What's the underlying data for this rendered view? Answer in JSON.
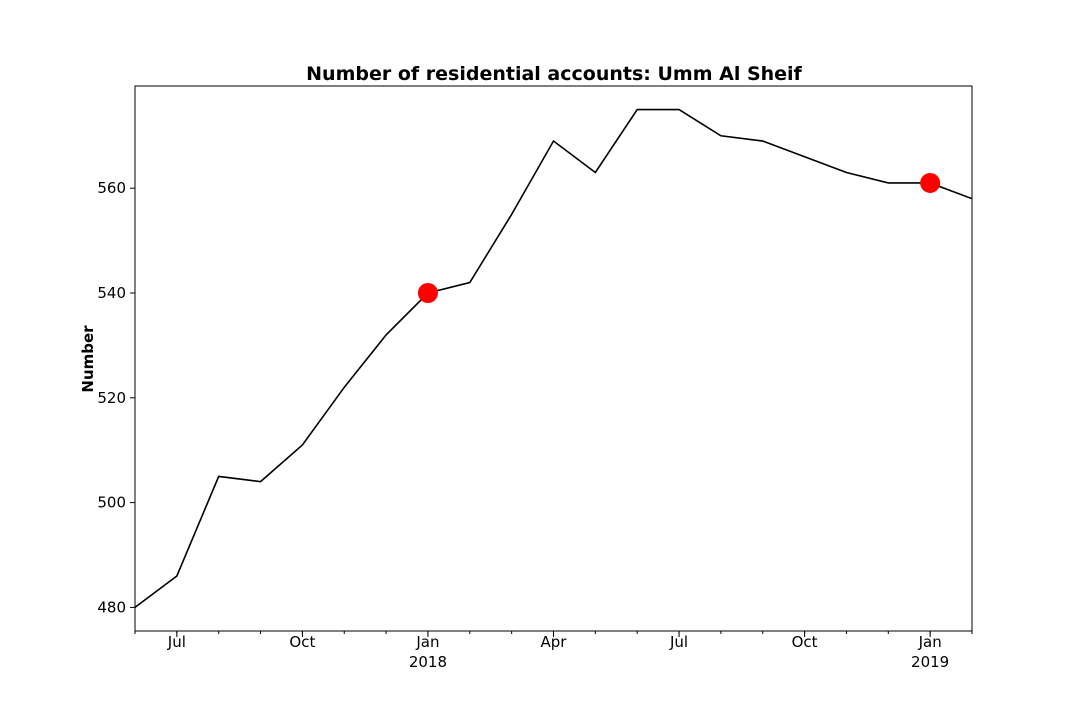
{
  "chart_data": {
    "type": "line",
    "title": "Number of residential accounts: Umm Al Sheif",
    "xlabel": "",
    "ylabel": "Number",
    "x": [
      "2017-06",
      "2017-07",
      "2017-08",
      "2017-09",
      "2017-10",
      "2017-11",
      "2017-12",
      "2018-01",
      "2018-02",
      "2018-03",
      "2018-04",
      "2018-05",
      "2018-06",
      "2018-07",
      "2018-08",
      "2018-09",
      "2018-10",
      "2018-11",
      "2018-12",
      "2019-01",
      "2019-02"
    ],
    "series": [
      {
        "values": [
          480,
          486,
          505,
          504,
          511,
          522,
          532,
          540,
          542,
          555,
          569,
          563,
          575,
          575,
          570,
          569,
          566,
          563,
          561,
          561,
          558
        ],
        "color": "#000000"
      }
    ],
    "highlighted_points": [
      {
        "x": "2018-01",
        "y": 540,
        "color": "#ff0000"
      },
      {
        "x": "2019-01",
        "y": 561,
        "color": "#ff0000"
      }
    ],
    "xlim": [
      "2017-06",
      "2019-02"
    ],
    "ylim": [
      475.5,
      579.5
    ],
    "x_tick_labels": [
      {
        "x": "2017-07",
        "label": "Jul"
      },
      {
        "x": "2017-10",
        "label": "Oct"
      },
      {
        "x": "2018-01",
        "label": "Jan",
        "sublabel": "2018"
      },
      {
        "x": "2018-04",
        "label": "Apr"
      },
      {
        "x": "2018-07",
        "label": "Jul"
      },
      {
        "x": "2018-10",
        "label": "Oct"
      },
      {
        "x": "2019-01",
        "label": "Jan",
        "sublabel": "2019"
      }
    ],
    "y_ticks": [
      480,
      500,
      520,
      540,
      560
    ],
    "grid": false,
    "legend": "none"
  }
}
